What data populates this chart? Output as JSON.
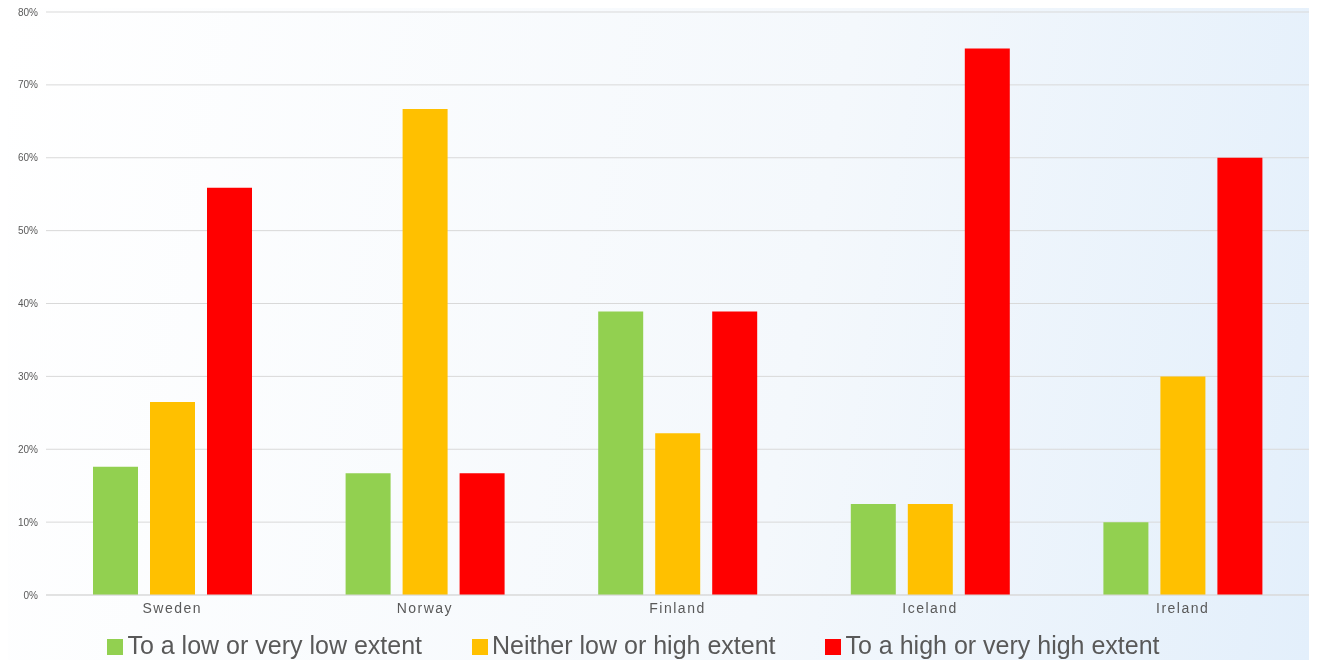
{
  "chart_data": {
    "type": "bar",
    "categories": [
      "Sweden",
      "Norway",
      "Finland",
      "Iceland",
      "Ireland"
    ],
    "series": [
      {
        "name": "To a low or very low extent",
        "color": "#92d050",
        "values": [
          17.6,
          16.7,
          38.9,
          12.5,
          10
        ]
      },
      {
        "name": "Neither low or high extent",
        "color": "#ffc000",
        "values": [
          26.5,
          66.7,
          22.2,
          12.5,
          30
        ]
      },
      {
        "name": "To a high or very high extent",
        "color": "#ff0000",
        "values": [
          55.9,
          16.7,
          38.9,
          75,
          60
        ]
      }
    ],
    "ylim": [
      0,
      80
    ],
    "yticks": [
      {
        "value": 0,
        "label": "0%"
      },
      {
        "value": 10,
        "label": "10%"
      },
      {
        "value": 20,
        "label": "20%"
      },
      {
        "value": 30,
        "label": "30%"
      },
      {
        "value": 40,
        "label": "40%"
      },
      {
        "value": 50,
        "label": "50%"
      },
      {
        "value": 60,
        "label": "60%"
      },
      {
        "value": 70,
        "label": "70%"
      },
      {
        "value": 80,
        "label": "80%"
      }
    ],
    "grid": "y",
    "legend": "bottom"
  }
}
